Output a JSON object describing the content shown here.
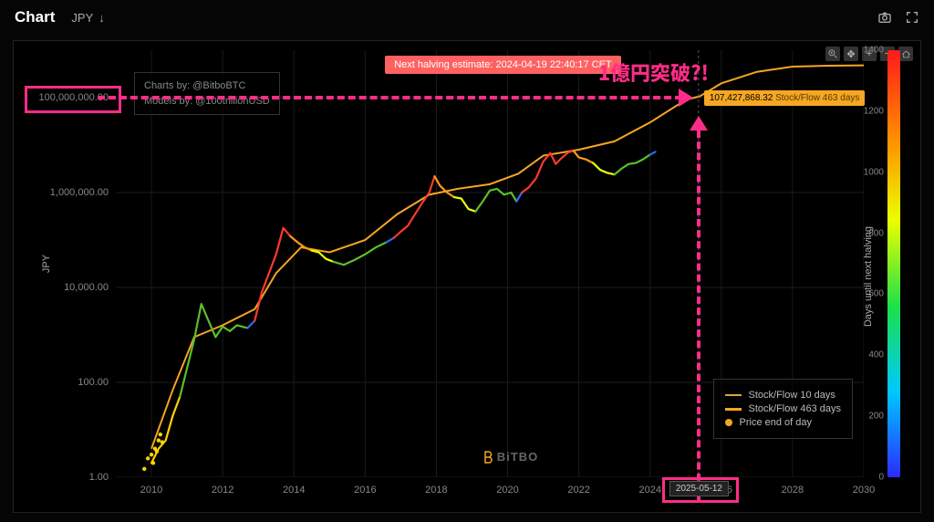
{
  "header": {
    "title": "Chart",
    "currency": "JPY",
    "down_glyph": "↓"
  },
  "toolbar_icons": [
    "zoom",
    "pan",
    "plus",
    "minus",
    "home"
  ],
  "halving_banner": "Next halving estimate: 2024-04-19 22:40:17 CET",
  "credits": {
    "line1": "Charts by: @BitboBTC",
    "line2": "Models by: @100trillionUSD"
  },
  "watermark": "BiTBO",
  "annotation": {
    "headline": "1億円突破?!",
    "price_value": "107,427,868.32",
    "price_label": "Stock/Flow 463 days",
    "cross_date": "2025-05-12"
  },
  "legend": {
    "items": [
      {
        "label": "Stock/Flow 10 days",
        "color": "#d8a24a",
        "kind": "line"
      },
      {
        "label": "Stock/Flow 463 days",
        "color": "#f5a623",
        "kind": "line-bold"
      },
      {
        "label": "Price end of day",
        "color": "#f5a623",
        "kind": "dot"
      }
    ]
  },
  "chart": {
    "type": "line-log",
    "background_color": "#000000",
    "grid_color": "#1b1b1b",
    "x": {
      "min": 2009,
      "max": 2030,
      "ticks": [
        2010,
        2012,
        2014,
        2016,
        2018,
        2020,
        2022,
        2024,
        2026,
        2028,
        2030
      ]
    },
    "y": {
      "scale": "log",
      "min": 1,
      "max": 1000000000.0,
      "ticks": [
        {
          "v": 1,
          "label": "1.00"
        },
        {
          "v": 100,
          "label": "100.00"
        },
        {
          "v": 10000,
          "label": "10,000.00"
        },
        {
          "v": 1000000,
          "label": "1,000,000.00"
        },
        {
          "v": 100000000,
          "label": "100,000,000.00"
        }
      ],
      "label": "JPY"
    },
    "colorbar": {
      "label": "Days until next halving",
      "min": 0,
      "max": 1400,
      "ticks": [
        0,
        200,
        400,
        600,
        800,
        1000,
        1200,
        1400
      ],
      "gradient": [
        "#2b2bff",
        "#00c8ff",
        "#1de04a",
        "#eaff00",
        "#ff8a00",
        "#ff1a1a"
      ]
    },
    "s2f_463": [
      [
        2010.0,
        4
      ],
      [
        2010.6,
        70
      ],
      [
        2011.2,
        900
      ],
      [
        2012.0,
        1600
      ],
      [
        2012.9,
        3500
      ],
      [
        2013.5,
        20000
      ],
      [
        2014.2,
        70000
      ],
      [
        2015.0,
        55000
      ],
      [
        2016.0,
        100000
      ],
      [
        2016.9,
        350000
      ],
      [
        2017.8,
        900000
      ],
      [
        2018.6,
        1200000
      ],
      [
        2019.5,
        1500000
      ],
      [
        2020.3,
        2500000
      ],
      [
        2021.0,
        6000000
      ],
      [
        2022.0,
        8000000
      ],
      [
        2023.0,
        12000000
      ],
      [
        2024.0,
        30000000
      ],
      [
        2025.0,
        90000000
      ],
      [
        2025.4,
        107000000
      ],
      [
        2026.0,
        200000000
      ],
      [
        2027.0,
        350000000
      ],
      [
        2028.0,
        450000000
      ],
      [
        2029.0,
        470000000
      ],
      [
        2030.0,
        480000000
      ]
    ],
    "s2f_463_stroke": "#f5a623",
    "s2f_463_width": 2.0,
    "price_series": [
      {
        "c": "#ffd400",
        "pts": [
          [
            2010.0,
            2
          ],
          [
            2010.2,
            4
          ],
          [
            2010.4,
            6
          ],
          [
            2010.6,
            20
          ],
          [
            2010.8,
            50
          ]
        ]
      },
      {
        "c": "#5bbf2a",
        "pts": [
          [
            2010.8,
            50
          ],
          [
            2011.0,
            200
          ],
          [
            2011.2,
            800
          ],
          [
            2011.4,
            4500
          ],
          [
            2011.6,
            2000
          ],
          [
            2011.8,
            900
          ],
          [
            2012.0,
            1500
          ],
          [
            2012.2,
            1200
          ],
          [
            2012.4,
            1600
          ],
          [
            2012.7,
            1400
          ]
        ]
      },
      {
        "c": "#2b6bff",
        "pts": [
          [
            2012.7,
            1400
          ],
          [
            2012.9,
            2000
          ]
        ]
      },
      {
        "c": "#ff3a2a",
        "pts": [
          [
            2012.9,
            2000
          ],
          [
            2013.1,
            8000
          ],
          [
            2013.3,
            20000
          ],
          [
            2013.5,
            50000
          ],
          [
            2013.7,
            180000
          ],
          [
            2013.9,
            120000
          ]
        ]
      },
      {
        "c": "#ff9a1a",
        "pts": [
          [
            2013.9,
            120000
          ],
          [
            2014.1,
            90000
          ],
          [
            2014.3,
            70000
          ],
          [
            2014.5,
            60000
          ]
        ]
      },
      {
        "c": "#eaff00",
        "pts": [
          [
            2014.5,
            60000
          ],
          [
            2014.7,
            55000
          ],
          [
            2014.9,
            40000
          ],
          [
            2015.1,
            35000
          ]
        ]
      },
      {
        "c": "#5bbf2a",
        "pts": [
          [
            2015.1,
            35000
          ],
          [
            2015.4,
            30000
          ],
          [
            2015.7,
            38000
          ],
          [
            2016.0,
            50000
          ],
          [
            2016.3,
            70000
          ],
          [
            2016.6,
            90000
          ]
        ]
      },
      {
        "c": "#2b6bff",
        "pts": [
          [
            2016.6,
            90000
          ],
          [
            2016.8,
            110000
          ]
        ]
      },
      {
        "c": "#ff3a2a",
        "pts": [
          [
            2016.8,
            110000
          ],
          [
            2017.0,
            150000
          ],
          [
            2017.2,
            200000
          ],
          [
            2017.4,
            350000
          ],
          [
            2017.6,
            600000
          ],
          [
            2017.8,
            1000000
          ],
          [
            2017.95,
            2200000
          ]
        ]
      },
      {
        "c": "#ff9a1a",
        "pts": [
          [
            2017.95,
            2200000
          ],
          [
            2018.1,
            1400000
          ],
          [
            2018.3,
            1000000
          ],
          [
            2018.5,
            800000
          ]
        ]
      },
      {
        "c": "#eaff00",
        "pts": [
          [
            2018.5,
            800000
          ],
          [
            2018.7,
            750000
          ],
          [
            2018.9,
            450000
          ],
          [
            2019.1,
            400000
          ]
        ]
      },
      {
        "c": "#5bbf2a",
        "pts": [
          [
            2019.1,
            400000
          ],
          [
            2019.3,
            650000
          ],
          [
            2019.5,
            1100000
          ],
          [
            2019.7,
            1200000
          ],
          [
            2019.9,
            900000
          ],
          [
            2020.1,
            1000000
          ],
          [
            2020.25,
            650000
          ]
        ]
      },
      {
        "c": "#2b6bff",
        "pts": [
          [
            2020.25,
            650000
          ],
          [
            2020.4,
            1000000
          ]
        ]
      },
      {
        "c": "#ff3a2a",
        "pts": [
          [
            2020.4,
            1000000
          ],
          [
            2020.6,
            1300000
          ],
          [
            2020.8,
            2000000
          ],
          [
            2021.0,
            4500000
          ],
          [
            2021.2,
            6800000
          ],
          [
            2021.35,
            4000000
          ],
          [
            2021.5,
            5200000
          ],
          [
            2021.7,
            7000000
          ],
          [
            2021.85,
            7600000
          ]
        ]
      },
      {
        "c": "#ff9a1a",
        "pts": [
          [
            2021.85,
            7600000
          ],
          [
            2022.0,
            5500000
          ],
          [
            2022.2,
            5000000
          ],
          [
            2022.4,
            4200000
          ]
        ]
      },
      {
        "c": "#eaff00",
        "pts": [
          [
            2022.4,
            4200000
          ],
          [
            2022.6,
            3000000
          ],
          [
            2022.8,
            2600000
          ],
          [
            2023.0,
            2400000
          ]
        ]
      },
      {
        "c": "#5bbf2a",
        "pts": [
          [
            2023.0,
            2400000
          ],
          [
            2023.2,
            3200000
          ],
          [
            2023.4,
            4000000
          ],
          [
            2023.6,
            4200000
          ],
          [
            2023.8,
            5000000
          ],
          [
            2024.0,
            6300000
          ]
        ]
      },
      {
        "c": "#2b6bff",
        "pts": [
          [
            2024.0,
            6300000
          ],
          [
            2024.15,
            7200000
          ]
        ]
      }
    ],
    "price_line_width": 2.2,
    "scatter_early": {
      "color": "#ffd400",
      "pts": [
        [
          2009.8,
          1.5
        ],
        [
          2009.9,
          2.5
        ],
        [
          2010.0,
          3
        ],
        [
          2010.05,
          2
        ],
        [
          2010.1,
          4
        ],
        [
          2010.15,
          3.5
        ],
        [
          2010.2,
          6
        ],
        [
          2010.25,
          8
        ],
        [
          2010.3,
          5.5
        ]
      ]
    }
  },
  "colors": {
    "pink": "#ff2d87",
    "orange": "#f5a623",
    "banner": "#ff6161"
  }
}
